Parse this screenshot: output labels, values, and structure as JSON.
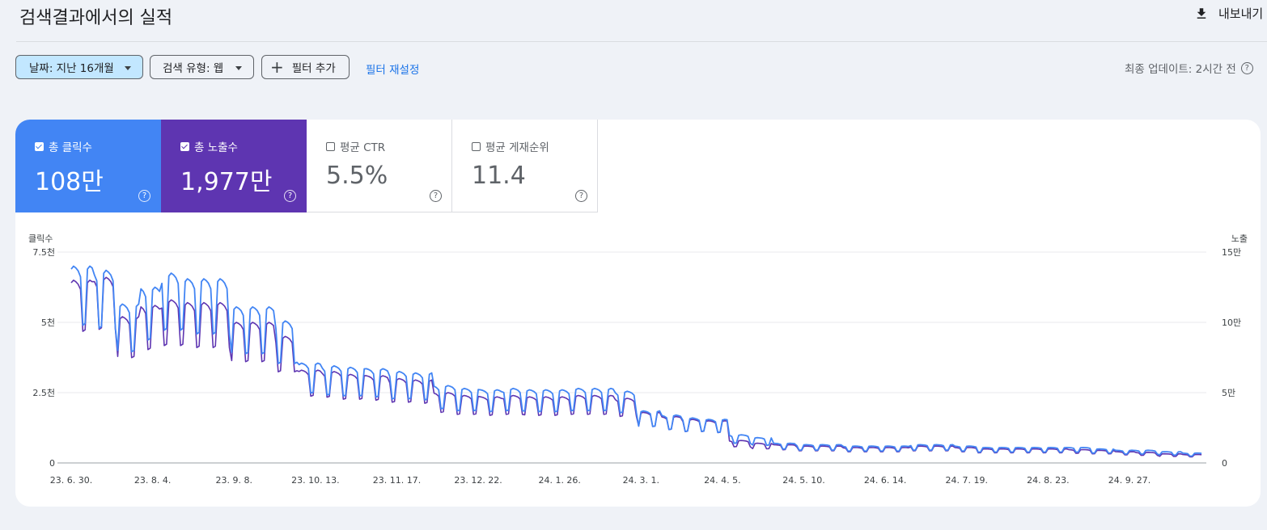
{
  "header": {
    "title": "검색결과에서의 실적",
    "export_label": "내보내기"
  },
  "filters": {
    "date_chip": "날짜: 지난 16개월",
    "type_chip": "검색 유형: 웹",
    "add_filter": "필터 추가",
    "reset": "필터 재설정",
    "updated": "최종 업데이트: 2시간 전"
  },
  "metrics": {
    "clicks": {
      "label": "총 클릭수",
      "value": "108만",
      "checked": true,
      "color": "#4285f4"
    },
    "impressions": {
      "label": "총 노출수",
      "value": "1,977만",
      "checked": true,
      "color": "#5e35b1"
    },
    "ctr": {
      "label": "평균 CTR",
      "value": "5.5%",
      "checked": false
    },
    "position": {
      "label": "평균 게재순위",
      "value": "11.4",
      "checked": false
    }
  },
  "chart_data": {
    "type": "line",
    "y_left_label": "클릭수",
    "y_right_label": "노출",
    "y_left_ticks": [
      "0",
      "2.5천",
      "5천",
      "7.5천"
    ],
    "y_right_ticks": [
      "0",
      "5만",
      "10만",
      "15만"
    ],
    "y_left_range": [
      0,
      7500
    ],
    "y_right_range": [
      0,
      150000
    ],
    "x_ticks": [
      "23. 6. 30.",
      "23. 8. 4.",
      "23. 9. 8.",
      "23. 10. 13.",
      "23. 11. 17.",
      "23. 12. 22.",
      "24. 1. 26.",
      "24. 3. 1.",
      "24. 4. 5.",
      "24. 5. 10.",
      "24. 6. 14.",
      "24. 7. 19.",
      "24. 8. 23.",
      "24. 9. 27."
    ],
    "x_tick_days": [
      0,
      35,
      70,
      105,
      140,
      175,
      210,
      245,
      280,
      315,
      350,
      385,
      420,
      455
    ],
    "total_days": 487,
    "grid": true,
    "series": [
      {
        "name": "클릭수",
        "axis": "left",
        "color": "#4285f4",
        "weekly_peaks": [
          7000,
          6850,
          5650,
          6250,
          6750,
          6550,
          6550,
          5550,
          5550,
          5050,
          3550,
          3450,
          3400,
          3350,
          3250,
          3200,
          2750,
          2650,
          2600,
          2650,
          2600,
          2600,
          2650,
          2650,
          2550,
          1850,
          1700,
          1600,
          1550,
          1000,
          900,
          700,
          650,
          650,
          600,
          600,
          600,
          650,
          650,
          600,
          550,
          550,
          550,
          550,
          550,
          500,
          450,
          450,
          400,
          350
        ],
        "weekend_drop": 0.7
      },
      {
        "name": "노출",
        "axis": "right",
        "color": "#5e35b1",
        "weekly_peaks": [
          130000,
          132000,
          104000,
          112000,
          116000,
          114000,
          114000,
          100000,
          100000,
          90000,
          66000,
          65000,
          63000,
          62000,
          60000,
          59000,
          50000,
          48000,
          47000,
          48000,
          47000,
          47000,
          48000,
          48000,
          46000,
          36000,
          33000,
          31000,
          30000,
          16000,
          14000,
          13000,
          12000,
          12000,
          11000,
          11000,
          11000,
          12000,
          12000,
          11000,
          10000,
          10000,
          10000,
          10000,
          9500,
          9000,
          8000,
          7500,
          6500,
          6000
        ],
        "weekend_drop": 0.72
      }
    ]
  }
}
